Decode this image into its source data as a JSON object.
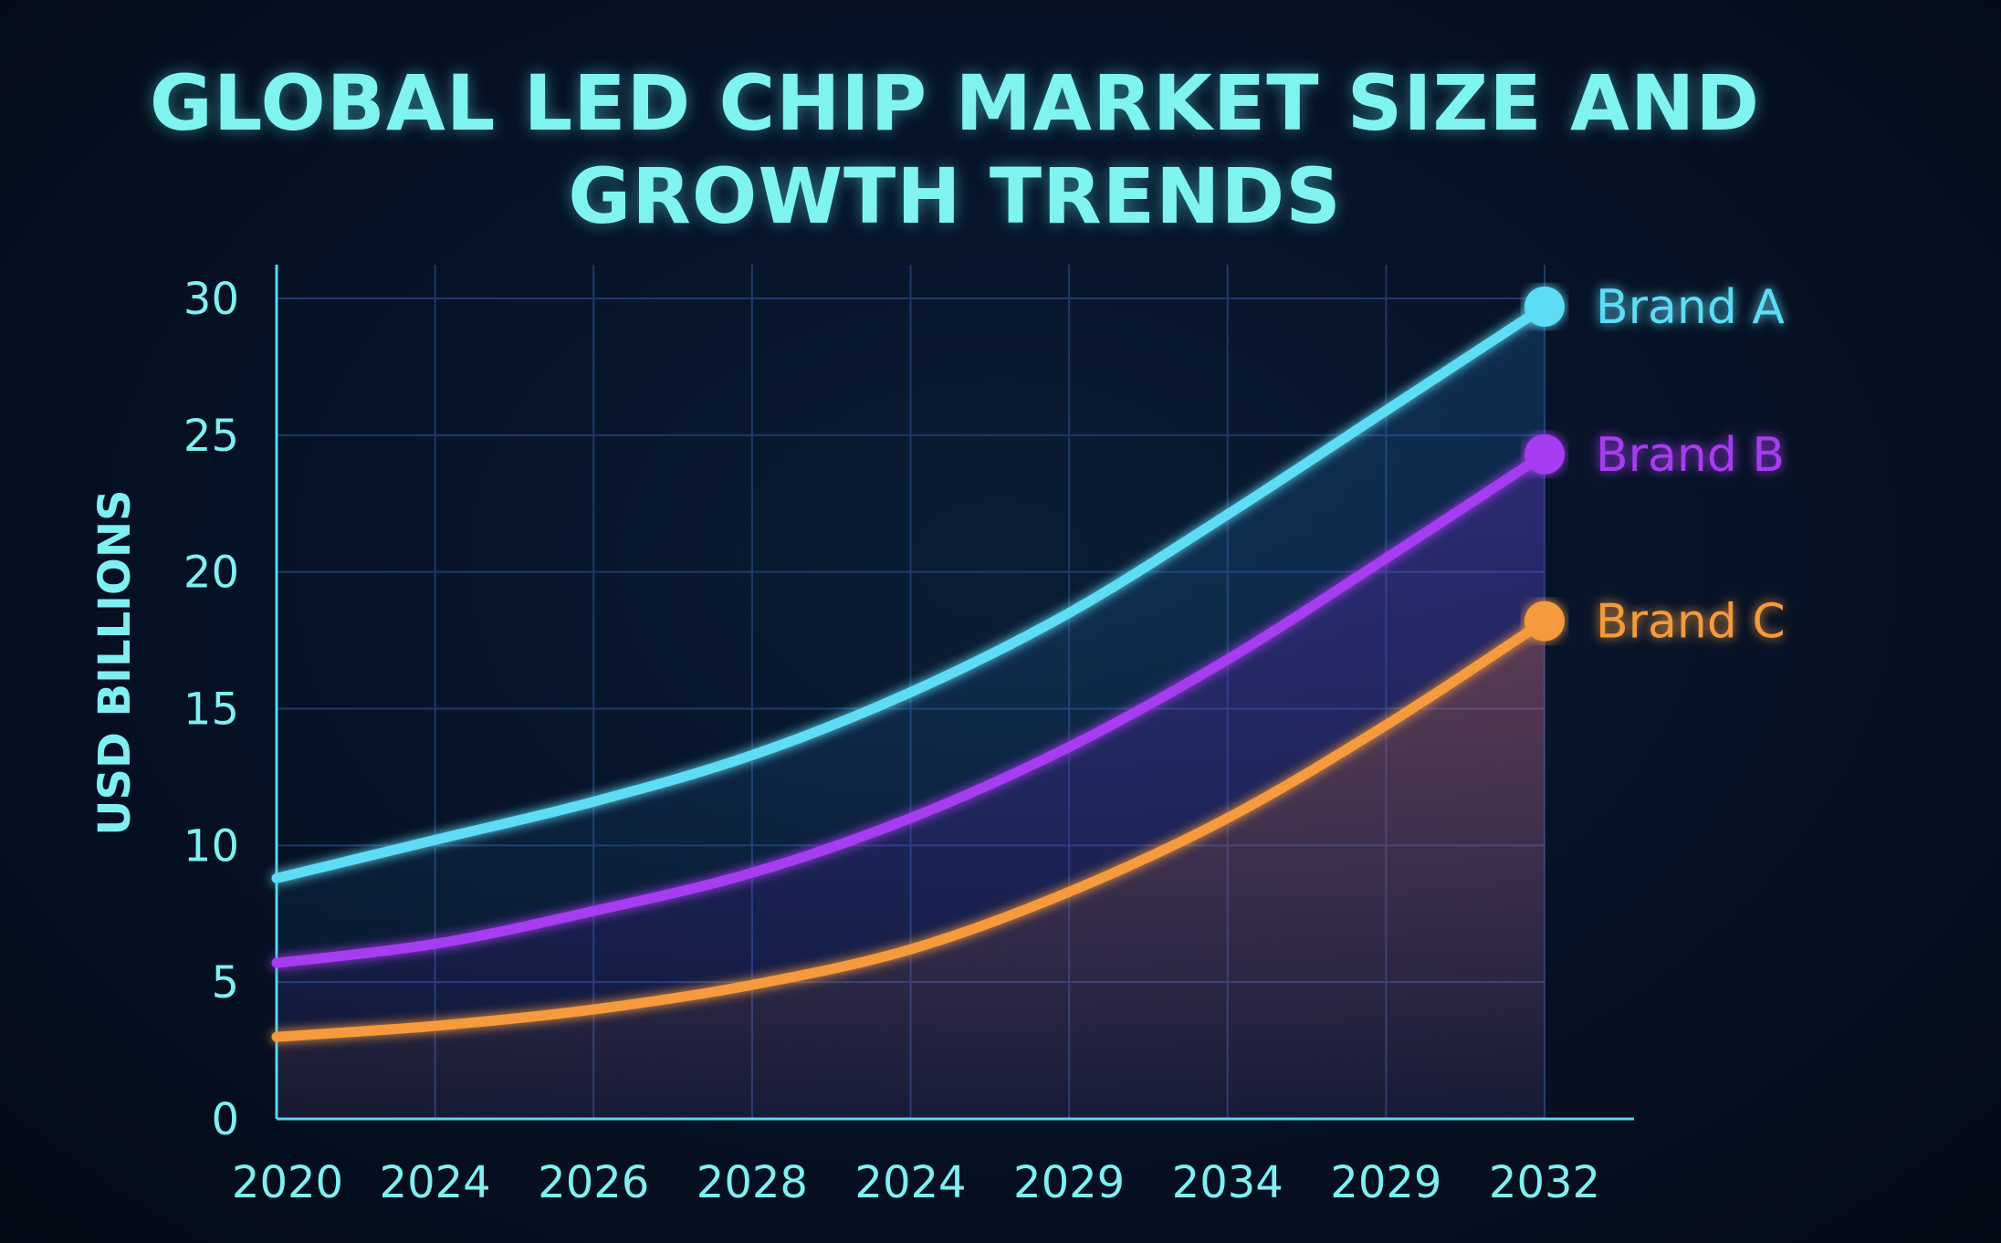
{
  "chart_data": {
    "type": "line",
    "title": "GLOBAL LED CHIP MARKET SIZE AND GROWTH TRENDS",
    "xlabel": "",
    "ylabel": "USD BILLIONS",
    "categories": [
      "2020",
      "2024",
      "2026",
      "2028",
      "2024",
      "2029",
      "2034",
      "2029",
      "2032"
    ],
    "ylim": [
      0,
      30
    ],
    "yticks": [
      0,
      5,
      10,
      15,
      20,
      25,
      30
    ],
    "grid": true,
    "legend": "right",
    "series": [
      {
        "name": "Brand A",
        "color": "#5fdcf5",
        "values": [
          8.8,
          10.2,
          11.6,
          13.3,
          15.6,
          18.5,
          22.1,
          25.9,
          29.7
        ]
      },
      {
        "name": "Brand B",
        "color": "#a63cf0",
        "values": [
          5.7,
          6.4,
          7.6,
          9.0,
          11.0,
          13.6,
          16.8,
          20.5,
          24.3
        ]
      },
      {
        "name": "Brand C",
        "color": "#f59a3c",
        "values": [
          3.0,
          3.4,
          4.0,
          4.9,
          6.2,
          8.3,
          11.0,
          14.4,
          18.2
        ]
      }
    ]
  },
  "colors": {
    "axis": "#55d8ee",
    "tick_text": "#7ff0f2",
    "grid": "#1e3a6a"
  }
}
